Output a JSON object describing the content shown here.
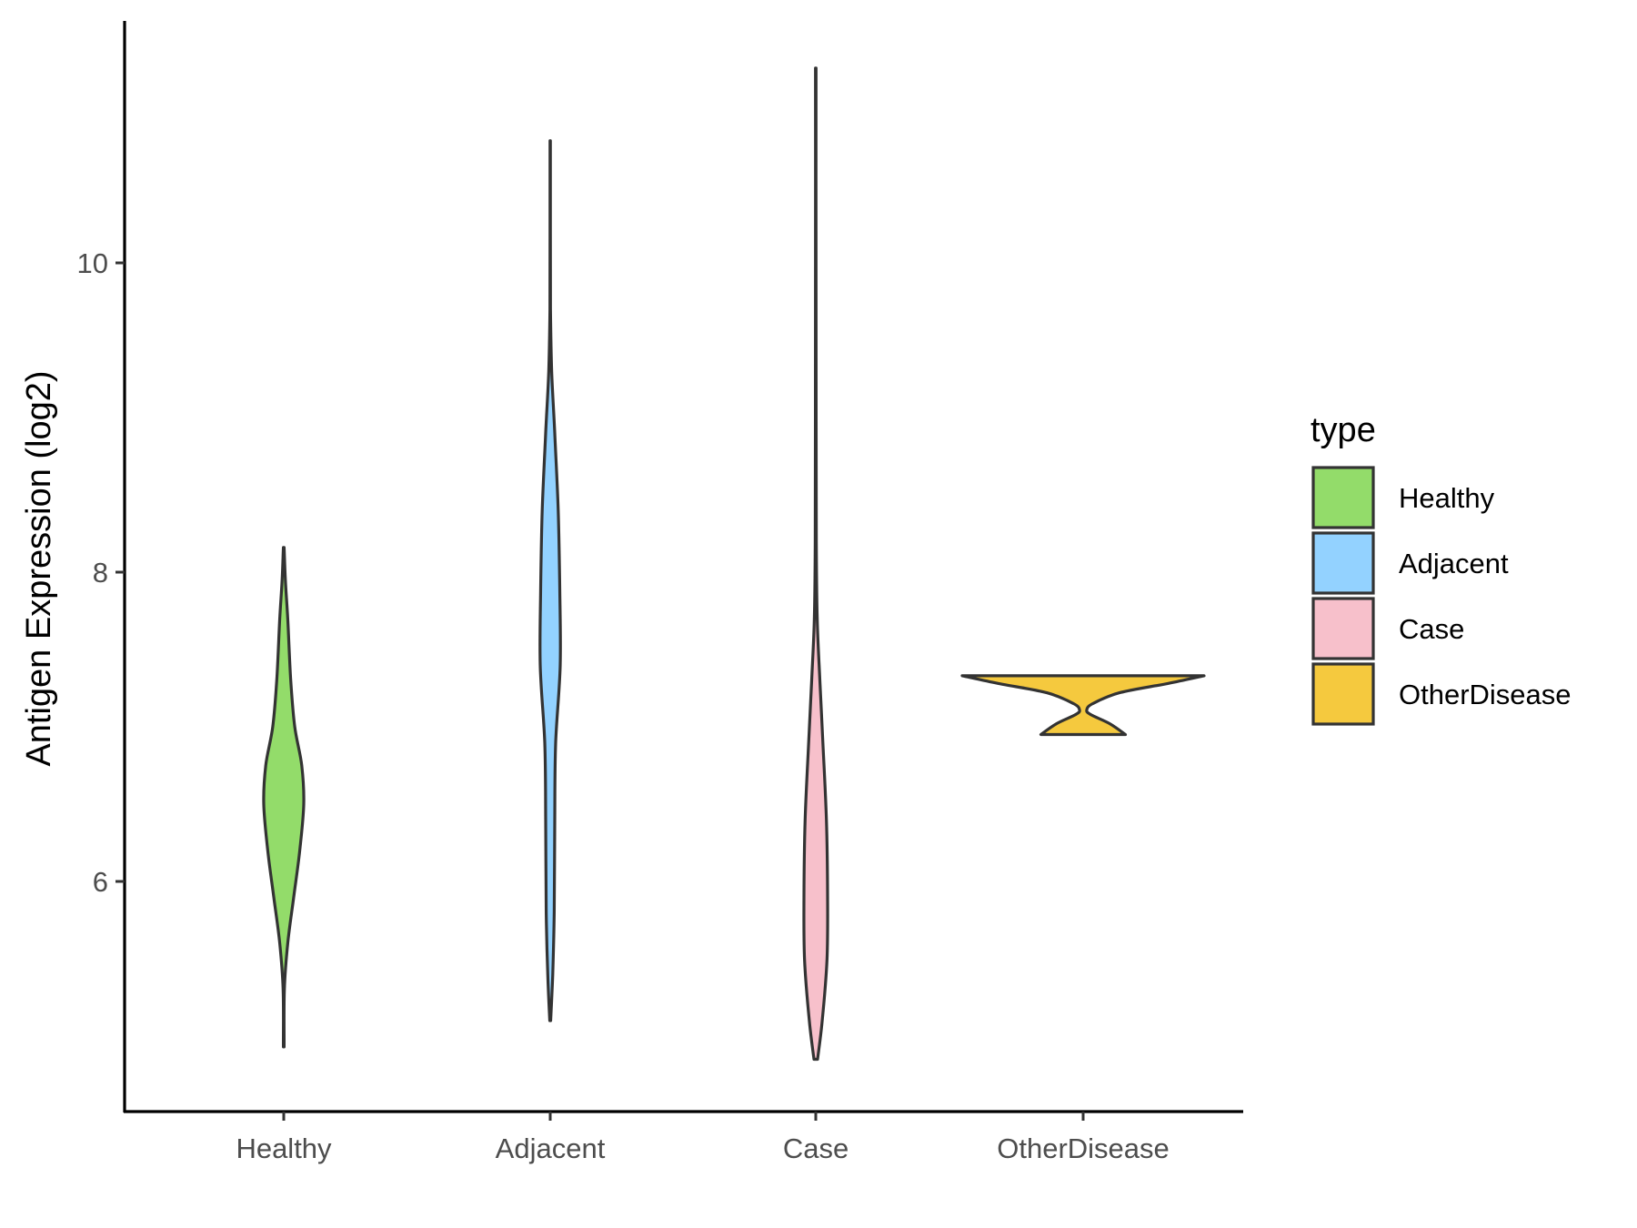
{
  "chart_data": {
    "type": "violin",
    "title": "",
    "xlabel": "",
    "ylabel": "Antigen Expression (log2)",
    "categories": [
      "Healthy",
      "Adjacent",
      "Case",
      "OtherDisease"
    ],
    "y_ticks": [
      6,
      8,
      10
    ],
    "y_tick_labels": [
      "6",
      "8",
      "10"
    ],
    "ylim": [
      4.65,
      11.65
    ],
    "grid": false,
    "legend": {
      "title": "type",
      "position": "right",
      "entries": [
        "Healthy",
        "Adjacent",
        "Case",
        "OtherDisease"
      ]
    },
    "colors": {
      "Healthy": "#93DC6A",
      "Adjacent": "#93D2FF",
      "Case": "#F7C0CB",
      "OtherDisease": "#F5C93E",
      "outline": "#333333",
      "axis": "#000000"
    },
    "series": [
      {
        "name": "Healthy",
        "min": 4.93,
        "max": 8.16,
        "density_profile": [
          [
            4.93,
            0.02
          ],
          [
            5.3,
            0.03
          ],
          [
            5.6,
            0.2
          ],
          [
            5.9,
            0.5
          ],
          [
            6.2,
            0.8
          ],
          [
            6.5,
            1.0
          ],
          [
            6.75,
            0.9
          ],
          [
            7.0,
            0.55
          ],
          [
            7.3,
            0.35
          ],
          [
            7.7,
            0.2
          ],
          [
            7.95,
            0.08
          ],
          [
            8.16,
            0.02
          ]
        ]
      },
      {
        "name": "Adjacent",
        "min": 5.1,
        "max": 10.79,
        "density_profile": [
          [
            5.1,
            0.05
          ],
          [
            5.4,
            0.25
          ],
          [
            5.8,
            0.4
          ],
          [
            6.4,
            0.45
          ],
          [
            6.9,
            0.55
          ],
          [
            7.4,
            1.0
          ],
          [
            7.9,
            0.95
          ],
          [
            8.4,
            0.8
          ],
          [
            8.9,
            0.45
          ],
          [
            9.3,
            0.15
          ],
          [
            9.7,
            0.03
          ],
          [
            10.2,
            0.02
          ],
          [
            10.79,
            0.02
          ]
        ]
      },
      {
        "name": "Case",
        "min": 4.85,
        "max": 11.26,
        "density_profile": [
          [
            4.85,
            0.15
          ],
          [
            5.1,
            0.55
          ],
          [
            5.5,
            0.95
          ],
          [
            5.9,
            1.0
          ],
          [
            6.4,
            0.9
          ],
          [
            6.9,
            0.6
          ],
          [
            7.3,
            0.35
          ],
          [
            7.7,
            0.12
          ],
          [
            8.2,
            0.05
          ],
          [
            9.0,
            0.03
          ],
          [
            10.0,
            0.02
          ],
          [
            11.26,
            0.02
          ]
        ]
      },
      {
        "name": "OtherDisease",
        "min": 6.95,
        "max": 7.33,
        "density_profile": [
          [
            6.95,
            0.35
          ],
          [
            7.02,
            0.22
          ],
          [
            7.08,
            0.06
          ],
          [
            7.11,
            0.03
          ],
          [
            7.15,
            0.08
          ],
          [
            7.22,
            0.3
          ],
          [
            7.28,
            0.7
          ],
          [
            7.33,
            1.0
          ]
        ]
      }
    ]
  }
}
